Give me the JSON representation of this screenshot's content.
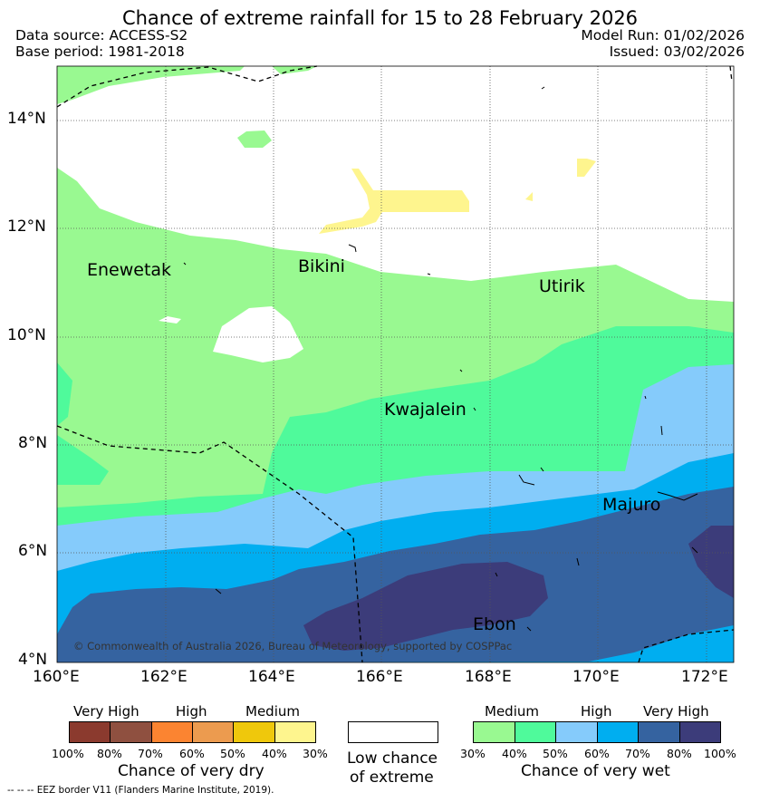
{
  "title": "Chance of extreme rainfall for 15 to 28 February 2026",
  "header": {
    "data_source": "Data source: ACCESS-S2",
    "base_period": "Base period: 1981-2018",
    "model_run": "Model Run: 01/02/2026",
    "issued": "Issued: 03/02/2026"
  },
  "map": {
    "lat_labels": [
      "14°N",
      "12°N",
      "10°N",
      "8°N",
      "6°N",
      "4°N"
    ],
    "lon_labels": [
      "160°E",
      "162°E",
      "164°E",
      "166°E",
      "168°E",
      "170°E",
      "172°E"
    ],
    "places": {
      "enewetak": "Enewetak",
      "bikini": "Bikini",
      "utirik": "Utirik",
      "kwajalein": "Kwajalein",
      "majuro": "Majuro",
      "ebon": "Ebon"
    },
    "copyright": "© Commonwealth of Australia 2026, Bureau of Meteorology, supported by COSPPac"
  },
  "legend": {
    "dry": {
      "groups": [
        "Very High",
        "High",
        "Medium"
      ],
      "percents": [
        "100%",
        "80%",
        "70%",
        "60%",
        "50%",
        "40%",
        "30%"
      ],
      "title": "Chance of very dry",
      "colors": [
        "#8b3a2e",
        "#8f5040",
        "#fb8431",
        "#ec9b4f",
        "#efc80c",
        "#fef58e"
      ]
    },
    "low": {
      "line1": "Low chance",
      "line2": "of extreme"
    },
    "wet": {
      "groups": [
        "Medium",
        "High",
        "Very High"
      ],
      "percents": [
        "30%",
        "40%",
        "50%",
        "60%",
        "70%",
        "80%",
        "100%"
      ],
      "title": "Chance of very wet",
      "colors": [
        "#99f991",
        "#4ffa9b",
        "#85cbfb",
        "#00aef0",
        "#3563a0",
        "#3c3c7a"
      ]
    }
  },
  "eez_note": "--  --  -- EEZ border V11 (Flanders Marine Institute, 2019)."
}
